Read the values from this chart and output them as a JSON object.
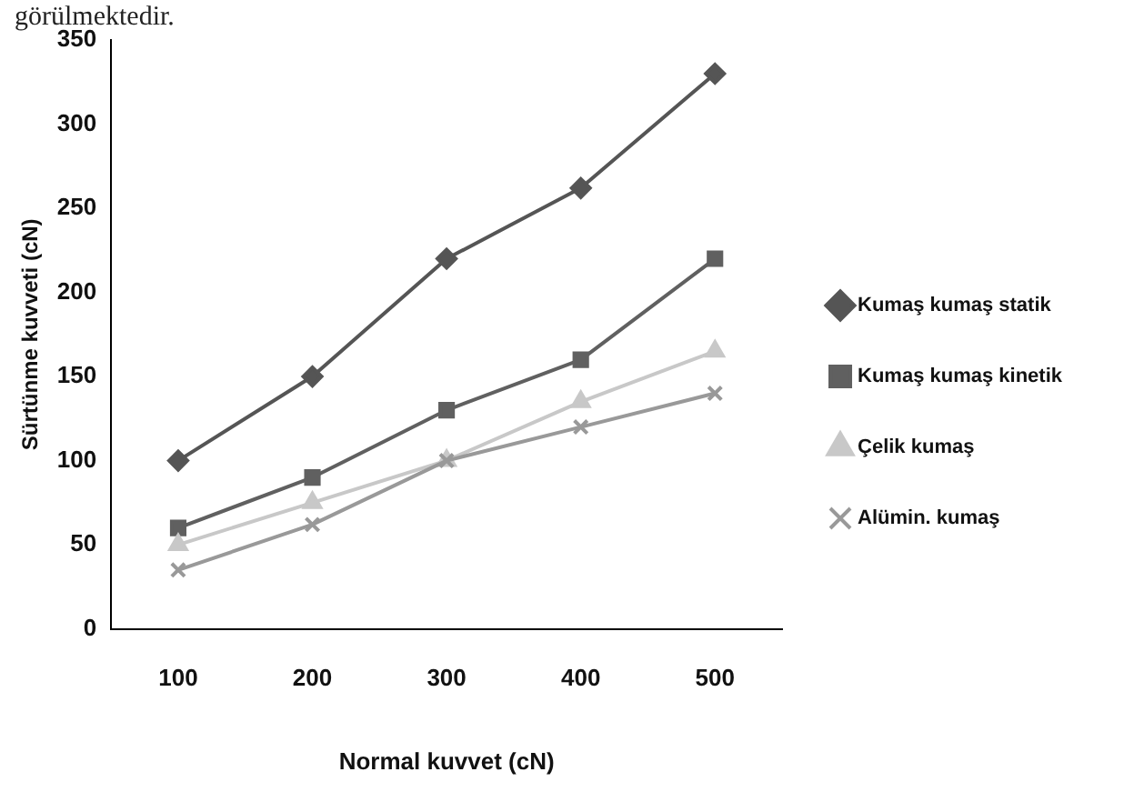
{
  "chart_data": {
    "type": "line",
    "xlabel": "Normal kuvvet (cN)",
    "ylabel": "Sürtünme kuvveti (cN)",
    "annotations": [
      "görülmektedir."
    ],
    "categories": [
      "100",
      "200",
      "300",
      "400",
      "500"
    ],
    "ylim": [
      0,
      350
    ],
    "yticks": [
      0,
      50,
      100,
      150,
      200,
      250,
      300,
      350
    ],
    "grid": false,
    "legend": "right",
    "series": [
      {
        "name": "Kumaş kumaş statik",
        "color": "#555555",
        "marker": "diamond",
        "values": [
          100,
          150,
          220,
          262,
          330
        ]
      },
      {
        "name": "Kumaş kumaş kinetik",
        "color": "#606060",
        "marker": "square",
        "values": [
          60,
          90,
          130,
          160,
          220
        ]
      },
      {
        "name": "Çelik kumaş",
        "color": "#c8c8c8",
        "marker": "triangle",
        "values": [
          50,
          75,
          100,
          135,
          165
        ]
      },
      {
        "name": "Alümin. kumaş",
        "color": "#999999",
        "marker": "cross",
        "values": [
          35,
          62,
          100,
          120,
          140
        ]
      }
    ]
  }
}
